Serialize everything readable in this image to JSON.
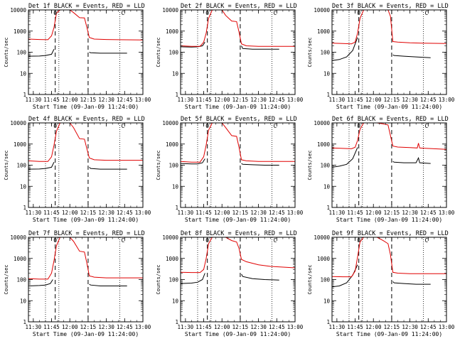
{
  "figure": {
    "xlabel": "Start Time (09-Jan-09 11:24:00)",
    "ylabel": "Counts/sec",
    "legend_text": "BLACK = Events, RED = LLD",
    "series_colors": {
      "Events": "#000000",
      "LLD": "#e00000"
    }
  },
  "chart_data": [
    {
      "type": "line",
      "title": "Det 1f BLACK = Events, RED = LLD",
      "xlabel": "Start Time (09-Jan-09 11:24:00)",
      "ylabel": "Counts/sec",
      "yscale": "log",
      "ylim": [
        1,
        10000
      ],
      "xlim": [
        "11:26",
        "13:00"
      ],
      "xticks": [
        "11:30",
        "11:45",
        "12:00",
        "12:15",
        "12:30",
        "12:45",
        "13:00"
      ],
      "yticks": [
        "1",
        "10",
        "100",
        "1000",
        "10000"
      ],
      "vlines_dashed": [
        "11:48",
        "12:15"
      ],
      "vlines_dotted": [
        "11:40",
        "11:51",
        "12:41"
      ],
      "markers": [
        "O",
        "C"
      ],
      "series": [
        {
          "name": "Events",
          "color": "#000000",
          "x": [
            "11:26",
            "11:35",
            "11:40",
            "11:45",
            "11:47",
            "12:16",
            "12:17",
            "12:25",
            "12:35",
            "12:47"
          ],
          "y": [
            65,
            66,
            70,
            80,
            140,
            100,
            95,
            90,
            90,
            90
          ]
        },
        {
          "name": "LLD",
          "color": "#e00000",
          "x": [
            "11:26",
            "11:35",
            "11:42",
            "11:45",
            "11:47",
            "11:49",
            "11:52",
            "11:57",
            "12:00",
            "12:03",
            "12:08",
            "12:12",
            "12:14",
            "12:16",
            "12:20",
            "12:30",
            "12:40",
            "13:00"
          ],
          "y": [
            420,
            400,
            390,
            600,
            1500,
            7000,
            10000,
            10000,
            10000,
            7500,
            4300,
            4200,
            1500,
            500,
            420,
            400,
            390,
            380
          ]
        }
      ]
    },
    {
      "type": "line",
      "title": "Det 2f BLACK = Events, RED = LLD",
      "xlabel": "Start Time (09-Jan-09 11:24:00)",
      "ylabel": "Counts/sec",
      "yscale": "log",
      "ylim": [
        1,
        10000
      ],
      "xlim": [
        "11:26",
        "13:00"
      ],
      "xticks": [
        "11:30",
        "11:45",
        "12:00",
        "12:15",
        "12:30",
        "12:45",
        "13:00"
      ],
      "yticks": [
        "1",
        "10",
        "100",
        "1000",
        "10000"
      ],
      "vlines_dashed": [
        "11:48",
        "12:15"
      ],
      "vlines_dotted": [
        "11:40",
        "11:51",
        "12:41"
      ],
      "markers": [
        "O",
        "C"
      ],
      "series": [
        {
          "name": "Events",
          "color": "#000000",
          "x": [
            "11:26",
            "11:35",
            "11:40",
            "11:44",
            "11:46",
            "12:16",
            "12:17",
            "12:25",
            "12:35",
            "12:47"
          ],
          "y": [
            180,
            175,
            180,
            200,
            300,
            200,
            150,
            140,
            140,
            140
          ]
        },
        {
          "name": "LLD",
          "color": "#e00000",
          "x": [
            "11:26",
            "11:35",
            "11:42",
            "11:45",
            "11:47",
            "11:49",
            "11:52",
            "11:57",
            "12:00",
            "12:03",
            "12:08",
            "12:12",
            "12:14",
            "12:16",
            "12:20",
            "12:30",
            "12:40",
            "13:00"
          ],
          "y": [
            200,
            190,
            190,
            300,
            800,
            4000,
            10000,
            10000,
            10000,
            5500,
            3000,
            2800,
            900,
            250,
            200,
            190,
            190,
            190
          ]
        }
      ]
    },
    {
      "type": "line",
      "title": "Det 3f BLACK = Events, RED = LLD",
      "xlabel": "Start Time (09-Jan-09 11:24:00)",
      "ylabel": "Counts/sec",
      "yscale": "log",
      "ylim": [
        1,
        10000
      ],
      "xlim": [
        "11:26",
        "13:00"
      ],
      "xticks": [
        "11:30",
        "11:45",
        "12:00",
        "12:15",
        "12:30",
        "12:45",
        "13:00"
      ],
      "yticks": [
        "1",
        "10",
        "100",
        "1000",
        "10000"
      ],
      "vlines_dashed": [
        "11:48",
        "12:15"
      ],
      "vlines_dotted": [
        "11:40",
        "11:51",
        "12:41"
      ],
      "markers": [
        "O",
        "C"
      ],
      "series": [
        {
          "name": "Events",
          "color": "#000000",
          "x": [
            "11:26",
            "11:32",
            "11:38",
            "11:43",
            "11:47",
            "12:16",
            "12:17",
            "12:25",
            "12:35",
            "12:47"
          ],
          "y": [
            40,
            45,
            60,
            120,
            500,
            75,
            70,
            65,
            60,
            55
          ]
        },
        {
          "name": "LLD",
          "color": "#e00000",
          "x": [
            "11:26",
            "11:35",
            "11:42",
            "11:45",
            "11:47",
            "11:49",
            "11:52",
            "11:57",
            "12:00",
            "12:03",
            "12:08",
            "12:12",
            "12:14",
            "12:16",
            "12:20",
            "12:30",
            "12:40",
            "13:00"
          ],
          "y": [
            270,
            260,
            250,
            300,
            800,
            4000,
            10000,
            10000,
            10000,
            10000,
            10000,
            10000,
            5000,
            320,
            300,
            280,
            270,
            260
          ]
        }
      ]
    },
    {
      "type": "line",
      "title": "Det 4f BLACK = Events, RED = LLD",
      "xlabel": "Start Time (09-Jan-09 11:24:00)",
      "ylabel": "Counts/sec",
      "yscale": "log",
      "ylim": [
        1,
        10000
      ],
      "xlim": [
        "11:26",
        "13:00"
      ],
      "xticks": [
        "11:30",
        "11:45",
        "12:00",
        "12:15",
        "12:30",
        "12:45",
        "13:00"
      ],
      "yticks": [
        "1",
        "10",
        "100",
        "1000",
        "10000"
      ],
      "vlines_dashed": [
        "11:48",
        "12:15"
      ],
      "vlines_dotted": [
        "11:40",
        "11:51",
        "12:41"
      ],
      "markers": [
        "O",
        "C"
      ],
      "series": [
        {
          "name": "Events",
          "color": "#000000",
          "x": [
            "11:26",
            "11:35",
            "11:40",
            "11:45",
            "11:47",
            "12:16",
            "12:17",
            "12:25",
            "12:35",
            "12:47"
          ],
          "y": [
            65,
            66,
            70,
            80,
            140,
            80,
            70,
            65,
            65,
            65
          ]
        },
        {
          "name": "LLD",
          "color": "#e00000",
          "x": [
            "11:26",
            "11:35",
            "11:42",
            "11:45",
            "11:47",
            "11:49",
            "11:52",
            "11:57",
            "12:00",
            "12:03",
            "12:08",
            "12:12",
            "12:14",
            "12:16",
            "12:20",
            "12:30",
            "12:40",
            "13:00"
          ],
          "y": [
            160,
            150,
            150,
            250,
            900,
            4000,
            10000,
            10000,
            10000,
            6000,
            1800,
            1700,
            600,
            220,
            180,
            170,
            170,
            170
          ]
        }
      ]
    },
    {
      "type": "line",
      "title": "Det 5f BLACK = Events, RED = LLD",
      "xlabel": "Start Time (09-Jan-09 11:24:00)",
      "ylabel": "Counts/sec",
      "yscale": "log",
      "ylim": [
        1,
        10000
      ],
      "xlim": [
        "11:26",
        "13:00"
      ],
      "xticks": [
        "11:30",
        "11:45",
        "12:00",
        "12:15",
        "12:30",
        "12:45",
        "13:00"
      ],
      "yticks": [
        "1",
        "10",
        "100",
        "1000",
        "10000"
      ],
      "vlines_dashed": [
        "11:48",
        "12:15"
      ],
      "vlines_dotted": [
        "11:40",
        "11:51",
        "12:41"
      ],
      "markers": [
        "O",
        "C"
      ],
      "series": [
        {
          "name": "Events",
          "color": "#000000",
          "x": [
            "11:26",
            "11:35",
            "11:40",
            "11:44",
            "11:46",
            "12:16",
            "12:17",
            "12:25",
            "12:35",
            "12:47"
          ],
          "y": [
            120,
            115,
            115,
            130,
            200,
            120,
            110,
            105,
            100,
            100
          ]
        },
        {
          "name": "LLD",
          "color": "#e00000",
          "x": [
            "11:26",
            "11:35",
            "11:42",
            "11:45",
            "11:47",
            "11:49",
            "11:52",
            "11:57",
            "12:00",
            "12:03",
            "12:08",
            "12:12",
            "12:14",
            "12:16",
            "12:20",
            "12:30",
            "12:40",
            "13:00"
          ],
          "y": [
            150,
            140,
            140,
            250,
            900,
            4500,
            10000,
            10000,
            10000,
            6000,
            2500,
            2300,
            700,
            180,
            160,
            150,
            150,
            150
          ]
        }
      ]
    },
    {
      "type": "line",
      "title": "Det 6f BLACK = Events, RED = LLD",
      "xlabel": "Start Time (09-Jan-09 11:24:00)",
      "ylabel": "Counts/sec",
      "yscale": "log",
      "ylim": [
        1,
        10000
      ],
      "xlim": [
        "11:26",
        "13:00"
      ],
      "xticks": [
        "11:30",
        "11:45",
        "12:00",
        "12:15",
        "12:30",
        "12:45",
        "13:00"
      ],
      "yticks": [
        "1",
        "10",
        "100",
        "1000",
        "10000"
      ],
      "vlines_dashed": [
        "11:48",
        "12:15"
      ],
      "vlines_dotted": [
        "11:40",
        "11:51",
        "12:41"
      ],
      "markers": [
        "O",
        "C"
      ],
      "series": [
        {
          "name": "Events",
          "color": "#000000",
          "x": [
            "11:26",
            "11:32",
            "11:38",
            "11:43",
            "11:47",
            "12:16",
            "12:17",
            "12:25",
            "12:35",
            "12:37",
            "12:38",
            "12:47"
          ],
          "y": [
            80,
            90,
            110,
            200,
            700,
            150,
            140,
            130,
            130,
            220,
            130,
            120
          ]
        },
        {
          "name": "LLD",
          "color": "#e00000",
          "x": [
            "11:26",
            "11:35",
            "11:42",
            "11:45",
            "11:47",
            "11:49",
            "11:52",
            "11:57",
            "12:00",
            "12:03",
            "12:08",
            "12:12",
            "12:14",
            "12:16",
            "12:20",
            "12:30",
            "12:36",
            "12:37",
            "12:38",
            "12:40",
            "13:00"
          ],
          "y": [
            650,
            620,
            600,
            700,
            1500,
            5000,
            10000,
            10000,
            10000,
            10000,
            9000,
            8000,
            2500,
            800,
            720,
            680,
            650,
            1100,
            650,
            640,
            560
          ]
        }
      ]
    },
    {
      "type": "line",
      "title": "Det 7f BLACK = Events, RED = LLD",
      "xlabel": "Start Time (09-Jan-09 11:24:00)",
      "ylabel": "Counts/sec",
      "yscale": "log",
      "ylim": [
        1,
        10000
      ],
      "xlim": [
        "11:26",
        "13:00"
      ],
      "xticks": [
        "11:30",
        "11:45",
        "12:00",
        "12:15",
        "12:30",
        "12:45",
        "13:00"
      ],
      "yticks": [
        "1",
        "10",
        "100",
        "1000",
        "10000"
      ],
      "vlines_dashed": [
        "11:48",
        "12:15"
      ],
      "vlines_dotted": [
        "11:40",
        "11:51",
        "12:41"
      ],
      "markers": [
        "O",
        "C"
      ],
      "series": [
        {
          "name": "Events",
          "color": "#000000",
          "x": [
            "11:26",
            "11:35",
            "11:40",
            "11:44",
            "11:46",
            "12:16",
            "12:17",
            "12:25",
            "12:35",
            "12:47"
          ],
          "y": [
            50,
            52,
            55,
            65,
            100,
            60,
            55,
            50,
            50,
            50
          ]
        },
        {
          "name": "LLD",
          "color": "#e00000",
          "x": [
            "11:26",
            "11:35",
            "11:42",
            "11:45",
            "11:47",
            "11:49",
            "11:52",
            "11:57",
            "12:00",
            "12:03",
            "12:08",
            "12:12",
            "12:14",
            "12:16",
            "12:20",
            "12:30",
            "12:40",
            "13:00"
          ],
          "y": [
            110,
            105,
            105,
            200,
            800,
            4000,
            10000,
            10000,
            10000,
            6500,
            2200,
            2000,
            600,
            150,
            130,
            120,
            120,
            120
          ]
        }
      ]
    },
    {
      "type": "line",
      "title": "Det 8f BLACK = Events, RED = LLD",
      "xlabel": "Start Time (09-Jan-09 11:24:00)",
      "ylabel": "Counts/sec",
      "yscale": "log",
      "ylim": [
        1,
        10000
      ],
      "xlim": [
        "11:26",
        "13:00"
      ],
      "xticks": [
        "11:30",
        "11:45",
        "12:00",
        "12:15",
        "12:30",
        "12:45",
        "13:00"
      ],
      "yticks": [
        "1",
        "10",
        "100",
        "1000",
        "10000"
      ],
      "vlines_dashed": [
        "11:48",
        "12:15"
      ],
      "vlines_dotted": [
        "11:40",
        "11:51",
        "12:41"
      ],
      "markers": [
        "O",
        "C"
      ],
      "series": [
        {
          "name": "Events",
          "color": "#000000",
          "x": [
            "11:26",
            "11:35",
            "11:40",
            "11:44",
            "11:46",
            "12:16",
            "12:17",
            "12:25",
            "12:35",
            "12:47"
          ],
          "y": [
            65,
            68,
            75,
            100,
            200,
            180,
            140,
            110,
            100,
            95
          ]
        },
        {
          "name": "LLD",
          "color": "#e00000",
          "x": [
            "11:26",
            "11:35",
            "11:42",
            "11:45",
            "11:47",
            "11:49",
            "11:52",
            "11:57",
            "12:00",
            "12:03",
            "12:08",
            "12:12",
            "12:14",
            "12:16",
            "12:20",
            "12:30",
            "12:40",
            "13:00"
          ],
          "y": [
            220,
            215,
            215,
            300,
            1000,
            5000,
            10000,
            10000,
            10000,
            10000,
            7000,
            6000,
            3000,
            900,
            700,
            500,
            420,
            360
          ]
        }
      ]
    },
    {
      "type": "line",
      "title": "Det 9f BLACK = Events, RED = LLD",
      "xlabel": "Start Time (09-Jan-09 11:24:00)",
      "ylabel": "Counts/sec",
      "yscale": "log",
      "ylim": [
        1,
        10000
      ],
      "xlim": [
        "11:26",
        "13:00"
      ],
      "xticks": [
        "11:30",
        "11:45",
        "12:00",
        "12:15",
        "12:30",
        "12:45",
        "13:00"
      ],
      "yticks": [
        "1",
        "10",
        "100",
        "1000",
        "10000"
      ],
      "vlines_dashed": [
        "11:48",
        "12:15"
      ],
      "vlines_dotted": [
        "11:40",
        "11:51",
        "12:41"
      ],
      "markers": [
        "O",
        "C"
      ],
      "series": [
        {
          "name": "Events",
          "color": "#000000",
          "x": [
            "11:26",
            "11:32",
            "11:38",
            "11:43",
            "11:47",
            "12:16",
            "12:17",
            "12:25",
            "12:35",
            "12:47"
          ],
          "y": [
            45,
            50,
            70,
            160,
            500,
            80,
            70,
            65,
            60,
            60
          ]
        },
        {
          "name": "LLD",
          "color": "#e00000",
          "x": [
            "11:26",
            "11:35",
            "11:42",
            "11:45",
            "11:47",
            "11:49",
            "11:52",
            "11:57",
            "12:00",
            "12:03",
            "12:08",
            "12:12",
            "12:14",
            "12:16",
            "12:20",
            "12:30",
            "12:40",
            "13:00"
          ],
          "y": [
            140,
            135,
            135,
            250,
            1200,
            6000,
            10000,
            10000,
            10000,
            10000,
            7000,
            5000,
            1500,
            220,
            200,
            190,
            190,
            190
          ]
        }
      ]
    }
  ]
}
